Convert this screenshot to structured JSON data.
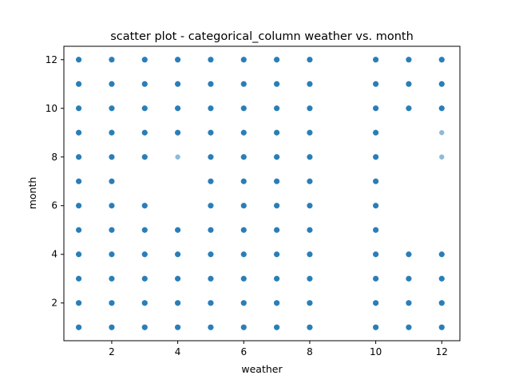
{
  "chart_data": {
    "type": "scatter",
    "title": "scatter plot - categorical_column weather vs. month",
    "xlabel": "weather",
    "ylabel": "month",
    "xlim": [
      0.55,
      12.55
    ],
    "ylim": [
      0.45,
      12.55
    ],
    "xticks": [
      2,
      4,
      6,
      8,
      10,
      12
    ],
    "yticks": [
      2,
      4,
      6,
      8,
      10,
      12
    ],
    "grid": false,
    "marker_color": "#1f77b4",
    "points": [
      {
        "x": 1,
        "y": [
          1,
          2,
          3,
          4,
          5,
          6,
          7,
          8,
          9,
          10,
          11,
          12
        ]
      },
      {
        "x": 2,
        "y": [
          1,
          2,
          3,
          4,
          5,
          6,
          7,
          8,
          9,
          10,
          11,
          12
        ]
      },
      {
        "x": 3,
        "y": [
          1,
          2,
          3,
          4,
          5,
          6,
          8,
          9,
          10,
          11,
          12
        ]
      },
      {
        "x": 4,
        "y": [
          1,
          2,
          3,
          4,
          5,
          8,
          9,
          10,
          11,
          12
        ]
      },
      {
        "x": 5,
        "y": [
          1,
          2,
          3,
          4,
          5,
          6,
          7,
          8,
          9,
          10,
          11,
          12
        ]
      },
      {
        "x": 6,
        "y": [
          1,
          2,
          3,
          4,
          5,
          6,
          7,
          8,
          9,
          10,
          11,
          12
        ]
      },
      {
        "x": 7,
        "y": [
          1,
          2,
          3,
          4,
          5,
          6,
          7,
          8,
          9,
          10,
          11,
          12
        ]
      },
      {
        "x": 8,
        "y": [
          1,
          2,
          3,
          4,
          5,
          6,
          7,
          8,
          9,
          10,
          11,
          12
        ]
      },
      {
        "x": 10,
        "y": [
          1,
          2,
          3,
          4,
          5,
          6,
          7,
          8,
          9,
          10,
          11,
          12
        ]
      },
      {
        "x": 11,
        "y": [
          1,
          2,
          3,
          4,
          10,
          11,
          12
        ]
      },
      {
        "x": 12,
        "y": [
          1,
          2,
          3,
          4,
          8,
          9,
          10,
          11,
          12
        ]
      }
    ],
    "faint_points": [
      [
        4,
        8
      ],
      [
        12,
        8
      ],
      [
        12,
        9
      ]
    ]
  }
}
